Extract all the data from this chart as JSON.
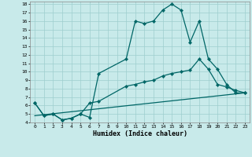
{
  "xlabel": "Humidex (Indice chaleur)",
  "bg_color": "#c8eaea",
  "grid_color": "#9ecece",
  "line_color": "#006666",
  "xlim": [
    -0.5,
    23.5
  ],
  "ylim": [
    4,
    18.3
  ],
  "xticks": [
    0,
    1,
    2,
    3,
    4,
    5,
    6,
    7,
    8,
    9,
    10,
    11,
    12,
    13,
    14,
    15,
    16,
    17,
    18,
    19,
    20,
    21,
    22,
    23
  ],
  "yticks": [
    4,
    5,
    6,
    7,
    8,
    9,
    10,
    11,
    12,
    13,
    14,
    15,
    16,
    17,
    18
  ],
  "line1_x": [
    0,
    1,
    2,
    3,
    4,
    5,
    6,
    7,
    10,
    11,
    12,
    13,
    14,
    15,
    16,
    17,
    18,
    19,
    20,
    21,
    22,
    23
  ],
  "line1_y": [
    6.3,
    4.8,
    5.0,
    4.3,
    4.5,
    5.0,
    4.6,
    9.8,
    11.5,
    16.0,
    15.7,
    16.0,
    17.3,
    18.0,
    17.3,
    13.5,
    16.0,
    11.5,
    10.3,
    8.5,
    7.5,
    7.5
  ],
  "line2_x": [
    0,
    1,
    2,
    3,
    4,
    5,
    6,
    7,
    10,
    11,
    12,
    13,
    14,
    15,
    16,
    17,
    18,
    19,
    20,
    21,
    22,
    23
  ],
  "line2_y": [
    6.3,
    4.8,
    5.0,
    4.3,
    4.5,
    5.0,
    6.3,
    6.5,
    8.3,
    8.5,
    8.8,
    9.0,
    9.5,
    9.8,
    10.0,
    10.2,
    11.5,
    10.3,
    8.5,
    8.2,
    7.8,
    7.5
  ],
  "line3_x": [
    0,
    23
  ],
  "line3_y": [
    4.8,
    7.5
  ],
  "marker_style": "D",
  "marker_size": 2.2,
  "linewidth": 0.9
}
